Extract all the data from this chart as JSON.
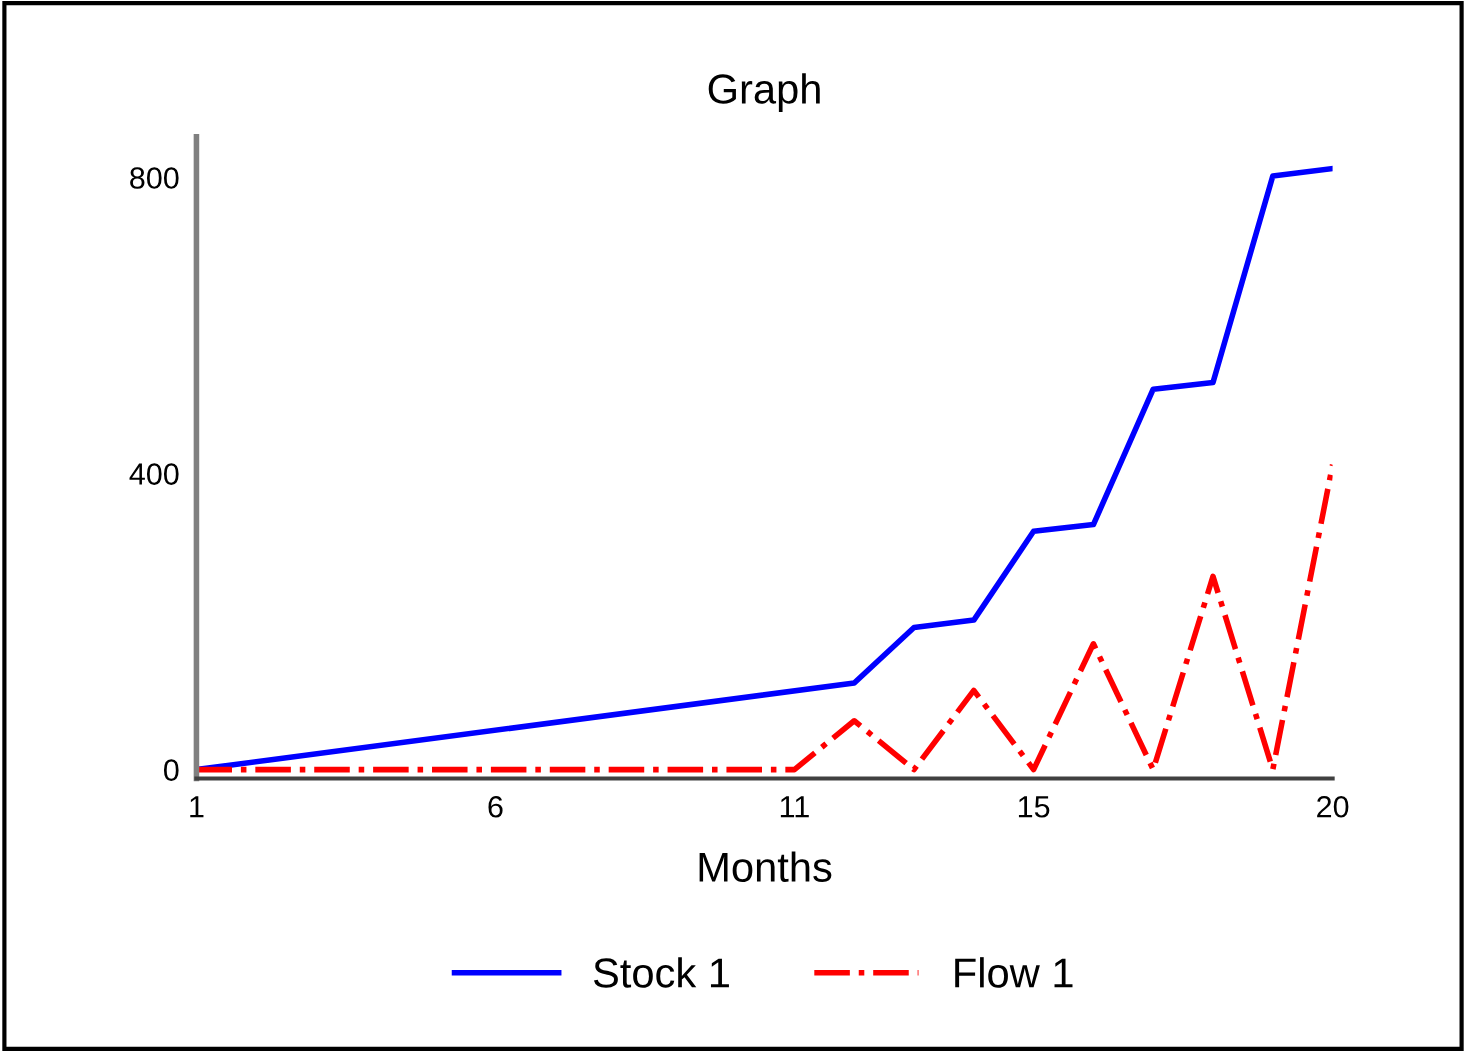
{
  "chart_data": {
    "type": "line",
    "title": "Graph",
    "xlabel": "Months",
    "xlim": [
      1,
      20
    ],
    "xticks": [
      1,
      6,
      11,
      15,
      20
    ],
    "ylim": [
      -12,
      855
    ],
    "yticks": [
      0,
      400,
      800
    ],
    "grid": false,
    "legend": "bottom",
    "series": [
      {
        "name": "Stock 1",
        "color": "#0000ff",
        "line_style": "solid",
        "x": [
          1,
          12,
          13,
          14,
          15,
          16,
          17,
          18,
          19,
          20
        ],
        "values": [
          0,
          117,
          192,
          202,
          322,
          331,
          514,
          523,
          802,
          812
        ]
      },
      {
        "name": "Flow 1",
        "color": "#ff0000",
        "line_style": "dashdot",
        "x": [
          1,
          11,
          12,
          13,
          14,
          15,
          16,
          17,
          18,
          19,
          20
        ],
        "values": [
          0,
          0,
          66,
          0,
          107,
          0,
          170,
          0,
          261,
          0,
          412
        ]
      }
    ]
  }
}
